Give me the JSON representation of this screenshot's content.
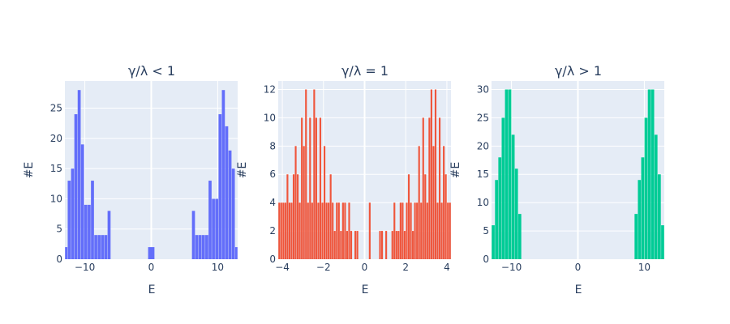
{
  "chart_data": [
    {
      "type": "bar",
      "title": "γ/λ < 1",
      "xlabel": "E",
      "ylabel": "#E",
      "color": "#636efa",
      "xlim": [
        -13,
        13
      ],
      "ylim": [
        0,
        29.5
      ],
      "xticks": [
        -10,
        0,
        10
      ],
      "xtick_labels": [
        "−10",
        "0",
        "10"
      ],
      "yticks": [
        0,
        5,
        10,
        15,
        20,
        25
      ],
      "yticks_labels": [
        "0",
        "5",
        "10",
        "15",
        "20",
        "25"
      ],
      "bins": [
        {
          "x0": -13,
          "x1": -12.6,
          "y": 2
        },
        {
          "x0": -12.6,
          "x1": -12.1,
          "y": 13
        },
        {
          "x0": -12.1,
          "x1": -11.6,
          "y": 15
        },
        {
          "x0": -11.6,
          "x1": -11.1,
          "y": 24
        },
        {
          "x0": -11.1,
          "x1": -10.6,
          "y": 28
        },
        {
          "x0": -10.6,
          "x1": -10.1,
          "y": 19
        },
        {
          "x0": -10.1,
          "x1": -9.6,
          "y": 9
        },
        {
          "x0": -9.6,
          "x1": -9.1,
          "y": 9
        },
        {
          "x0": -9.1,
          "x1": -8.6,
          "y": 13
        },
        {
          "x0": -8.6,
          "x1": -8.1,
          "y": 4
        },
        {
          "x0": -8.1,
          "x1": -7.6,
          "y": 4
        },
        {
          "x0": -7.6,
          "x1": -7.1,
          "y": 4
        },
        {
          "x0": -7.1,
          "x1": -6.6,
          "y": 4
        },
        {
          "x0": -6.6,
          "x1": -6.1,
          "y": 8
        },
        {
          "x0": -0.5,
          "x1": 0.5,
          "y": 2
        },
        {
          "x0": 6.1,
          "x1": 6.6,
          "y": 8
        },
        {
          "x0": 6.6,
          "x1": 7.1,
          "y": 4
        },
        {
          "x0": 7.1,
          "x1": 7.6,
          "y": 4
        },
        {
          "x0": 7.6,
          "x1": 8.1,
          "y": 4
        },
        {
          "x0": 8.1,
          "x1": 8.6,
          "y": 4
        },
        {
          "x0": 8.6,
          "x1": 9.1,
          "y": 13
        },
        {
          "x0": 9.1,
          "x1": 9.6,
          "y": 10
        },
        {
          "x0": 9.6,
          "x1": 10.1,
          "y": 10
        },
        {
          "x0": 10.1,
          "x1": 10.6,
          "y": 24
        },
        {
          "x0": 10.6,
          "x1": 11.1,
          "y": 28
        },
        {
          "x0": 11.1,
          "x1": 11.6,
          "y": 22
        },
        {
          "x0": 11.6,
          "x1": 12.1,
          "y": 18
        },
        {
          "x0": 12.1,
          "x1": 12.6,
          "y": 15
        },
        {
          "x0": 12.6,
          "x1": 13,
          "y": 2
        }
      ]
    },
    {
      "type": "bar",
      "title": "γ/λ = 1",
      "xlabel": "E",
      "ylabel": "#E",
      "color": "#ef553b",
      "xlim": [
        -4.2,
        4.2
      ],
      "ylim": [
        0,
        12.6
      ],
      "xticks": [
        -4,
        -2,
        0,
        2,
        4
      ],
      "xtick_labels": [
        "−4",
        "−2",
        "0",
        "2",
        "4"
      ],
      "yticks": [
        0,
        2,
        4,
        6,
        8,
        10,
        12
      ],
      "yticks_labels": [
        "0",
        "2",
        "4",
        "6",
        "8",
        "10",
        "12"
      ],
      "binwidth": 0.1,
      "bins_start": -4.2,
      "counts": [
        4,
        4,
        4,
        4,
        6,
        4,
        4,
        6,
        8,
        6,
        4,
        10,
        8,
        12,
        4,
        10,
        4,
        12,
        10,
        4,
        10,
        4,
        8,
        4,
        4,
        6,
        4,
        2,
        4,
        4,
        2,
        4,
        4,
        2,
        4,
        2,
        0,
        2,
        2,
        0,
        0,
        0,
        0,
        0,
        4,
        0,
        0,
        0,
        0,
        2,
        2,
        0,
        2,
        0,
        0,
        2,
        4,
        2,
        2,
        4,
        4,
        2,
        4,
        6,
        4,
        2,
        4,
        4,
        8,
        4,
        10,
        6,
        4,
        10,
        12,
        8,
        12,
        4,
        10,
        4,
        8,
        6,
        4,
        4
      ]
    },
    {
      "type": "bar",
      "title": "γ/λ > 1",
      "xlabel": "E",
      "ylabel": "#E",
      "color": "#00cc96",
      "xlim": [
        -13,
        13
      ],
      "ylim": [
        0,
        31.5
      ],
      "xticks": [
        -10,
        0,
        10
      ],
      "xtick_labels": [
        "−10",
        "0",
        "10"
      ],
      "yticks": [
        0,
        5,
        10,
        15,
        20,
        25,
        30
      ],
      "yticks_labels": [
        "0",
        "5",
        "10",
        "15",
        "20",
        "25",
        "30"
      ],
      "bins": [
        {
          "x0": -13,
          "x1": -12.5,
          "y": 6
        },
        {
          "x0": -12.5,
          "x1": -12,
          "y": 14
        },
        {
          "x0": -12,
          "x1": -11.5,
          "y": 18
        },
        {
          "x0": -11.5,
          "x1": -11,
          "y": 25
        },
        {
          "x0": -11,
          "x1": -10.5,
          "y": 30
        },
        {
          "x0": -10.5,
          "x1": -10,
          "y": 30
        },
        {
          "x0": -10,
          "x1": -9.5,
          "y": 22
        },
        {
          "x0": -9.5,
          "x1": -9,
          "y": 16
        },
        {
          "x0": -9,
          "x1": -8.5,
          "y": 8
        },
        {
          "x0": 8.5,
          "x1": 9,
          "y": 8
        },
        {
          "x0": 9,
          "x1": 9.5,
          "y": 14
        },
        {
          "x0": 9.5,
          "x1": 10,
          "y": 18
        },
        {
          "x0": 10,
          "x1": 10.5,
          "y": 25
        },
        {
          "x0": 10.5,
          "x1": 11,
          "y": 30
        },
        {
          "x0": 11,
          "x1": 11.5,
          "y": 30
        },
        {
          "x0": 11.5,
          "x1": 12,
          "y": 22
        },
        {
          "x0": 12,
          "x1": 12.5,
          "y": 15
        },
        {
          "x0": 12.5,
          "x1": 13,
          "y": 6
        }
      ]
    }
  ]
}
